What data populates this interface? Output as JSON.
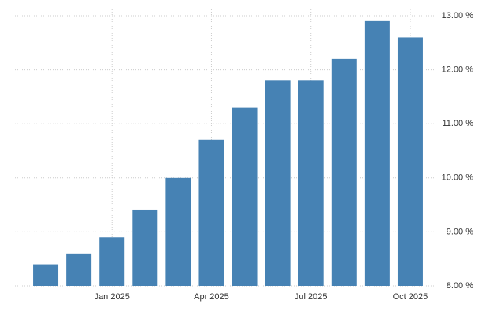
{
  "chart_data": {
    "type": "bar",
    "categories": [
      null,
      null,
      "Jan 2025",
      null,
      null,
      "Apr 2025",
      null,
      null,
      "Jul 2025",
      null,
      null,
      "Oct 2025"
    ],
    "values": [
      8.4,
      8.6,
      8.9,
      9.4,
      10.0,
      10.7,
      11.3,
      11.8,
      11.8,
      12.2,
      12.9,
      12.6
    ],
    "color": "#4682b4",
    "ylim": [
      8,
      13
    ],
    "yticks": [
      {
        "value": 8,
        "label": "8.00 %"
      },
      {
        "value": 9,
        "label": "9.00 %"
      },
      {
        "value": 10,
        "label": "10.00 %"
      },
      {
        "value": 11,
        "label": "11.00 %"
      },
      {
        "value": 12,
        "label": "12.00 %"
      },
      {
        "value": 13,
        "label": "13.00 %"
      }
    ],
    "grid": true
  }
}
